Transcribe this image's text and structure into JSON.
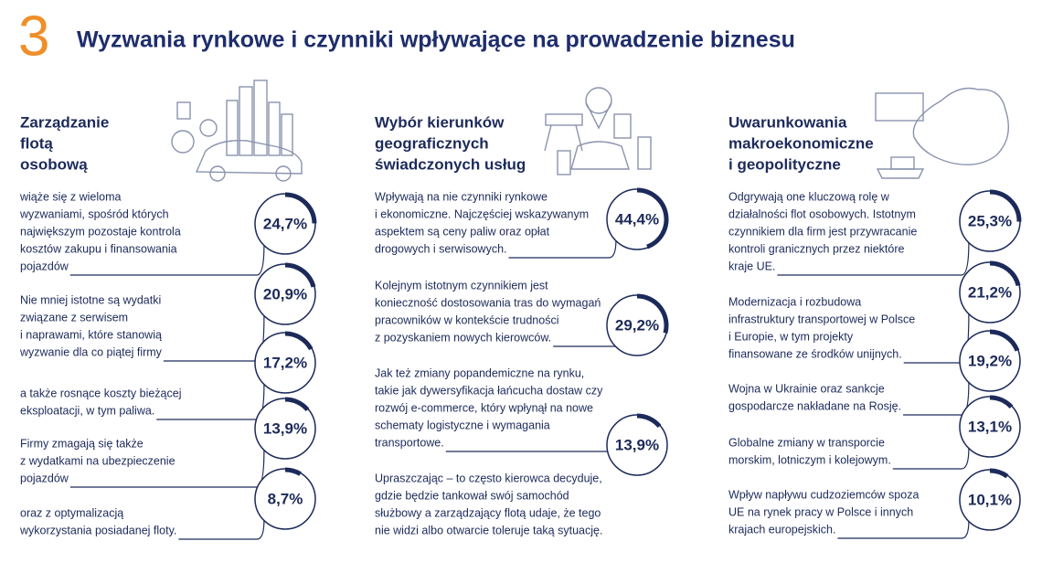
{
  "header": {
    "number": "3",
    "title": "Wyzwania rynkowe i czynniki wpływające na prowadzenie biznesu"
  },
  "columns": [
    {
      "heading": [
        "Zarządzanie",
        "flotą",
        "osobową"
      ],
      "items": [
        {
          "text": [
            "wiąże się z wieloma",
            "wyzwaniami, spośród których",
            "największym pozostaje kontrola",
            "kosztów zakupu i finansowania",
            "pojazdów"
          ],
          "value": {
            "value": 24.7,
            "label": "24,7%"
          }
        },
        {
          "text": [
            "Nie mniej istotne są wydatki",
            "związane z serwisem",
            "i naprawami, które stanowią",
            "wyzwanie dla co piątej firmy"
          ],
          "value": {
            "value": 20.9,
            "label": "20,9%"
          }
        },
        {
          "text": [
            "a także rosnące koszty bieżącej",
            "eksploatacji, w tym paliwa."
          ],
          "value": {
            "value": 17.2,
            "label": "17,2%"
          }
        },
        {
          "text": [
            "Firmy zmagają się także",
            "z wydatkami na ubezpieczenie",
            "pojazdów"
          ],
          "value": {
            "value": 13.9,
            "label": "13,9%"
          }
        },
        {
          "text": [
            "oraz z optymalizacją",
            "wykorzystania posiadanej floty."
          ],
          "value": {
            "value": 8.7,
            "label": "8,7%"
          }
        }
      ]
    },
    {
      "heading": [
        "Wybór kierunków",
        "geograficznych",
        "świadczonych usług"
      ],
      "items": [
        {
          "text": [
            "Wpływają na nie czynniki rynkowe",
            "i ekonomiczne. Najczęściej wskazywanym",
            "aspektem są ceny paliw oraz opłat",
            "drogowych i serwisowych."
          ],
          "value": {
            "value": 44.4,
            "label": "44,4%"
          }
        },
        {
          "text": [
            "Kolejnym istotnym czynnikiem jest",
            "konieczność dostosowania tras do wymagań",
            "pracowników w kontekście trudności",
            "z pozyskaniem nowych kierowców."
          ],
          "value": {
            "value": 29.2,
            "label": "29,2%"
          }
        },
        {
          "text": [
            "Jak też zmiany popandemiczne na rynku,",
            "takie jak dywersyfikacja łańcucha dostaw czy",
            "rozwój e-commerce, który wpłynął na nowe",
            "schematy logistyczne i wymagania",
            "transportowe."
          ],
          "value": {
            "value": 13.9,
            "label": "13,9%"
          }
        },
        {
          "text": [
            "Upraszczając – to często kierowca decyduje,",
            "gdzie będzie tankował swój samochód",
            "służbowy a zarządzający flotą udaje, że tego",
            "nie widzi albo otwarcie toleruje taką sytuację."
          ]
        }
      ]
    },
    {
      "heading": [
        "Uwarunkowania",
        "makroekonomiczne",
        "i geopolityczne"
      ],
      "items": [
        {
          "text": [
            "Odgrywają one kluczową rolę w",
            "działalności flot osobowych. Istotnym",
            "czynnikiem dla firm jest przywracanie",
            "kontroli granicznych przez niektóre",
            "kraje UE."
          ],
          "value": {
            "value": 25.3,
            "label": "25,3%"
          }
        },
        {
          "text": [
            "Modernizacja i rozbudowa",
            "infrastruktury transportowej w Polsce",
            "i Europie, w tym projekty",
            "finansowane ze środków unijnych."
          ],
          "value": {
            "value": 21.2,
            "label": "21,2%"
          }
        },
        {
          "text": [
            "Wojna w Ukrainie oraz sankcje",
            "gospodarcze nakładane na Rosję."
          ],
          "value": {
            "value": 19.2,
            "label": "19,2%"
          }
        },
        {
          "text": [
            "Globalne zmiany w transporcie",
            "morskim, lotniczym i kolejowym."
          ],
          "value": {
            "value": 13.1,
            "label": "13,1%"
          }
        },
        {
          "text": [
            "Wpływ napływu cudzoziemców spoza",
            "UE na rynek pracy w Polsce i innych",
            "krajach europejskich."
          ],
          "value": {
            "value": 10.1,
            "label": "10,1%"
          }
        }
      ]
    }
  ]
}
